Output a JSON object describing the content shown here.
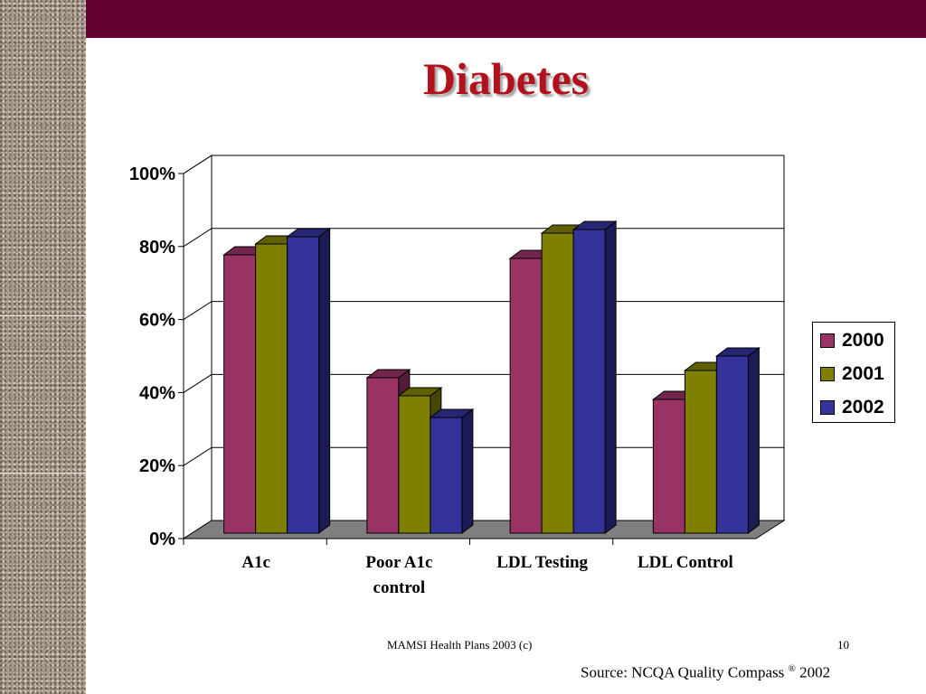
{
  "slide": {
    "title": "Diabetes",
    "footer": "MAMSI Health Plans 2003 (c)",
    "page_number": "10",
    "source_prefix": "Source: NCQA Quality Compass ",
    "source_mark": "®",
    "source_year": " 2002"
  },
  "colors": {
    "topbar": "#650033",
    "title": "#b2121b",
    "floor": "#7f7f7f"
  },
  "chart_data": {
    "type": "bar",
    "title": "",
    "xlabel": "",
    "ylabel": "",
    "ylim": [
      0,
      100
    ],
    "yticks": [
      0,
      20,
      40,
      60,
      80,
      100
    ],
    "ytick_labels": [
      "0%",
      "20%",
      "40%",
      "60%",
      "80%",
      "100%"
    ],
    "categories": [
      "A1c",
      "Poor A1c\ncontrol",
      "LDL Testing",
      "LDL Control"
    ],
    "series": [
      {
        "name": "2000",
        "color": "#993366",
        "values": [
          77,
          43,
          76,
          37
        ]
      },
      {
        "name": "2001",
        "color": "#808000",
        "values": [
          80,
          38,
          83,
          45
        ]
      },
      {
        "name": "2002",
        "color": "#333399",
        "values": [
          82,
          32,
          84,
          49
        ]
      }
    ],
    "grid": true,
    "legend": "right",
    "style": "3d-clustered-column"
  }
}
